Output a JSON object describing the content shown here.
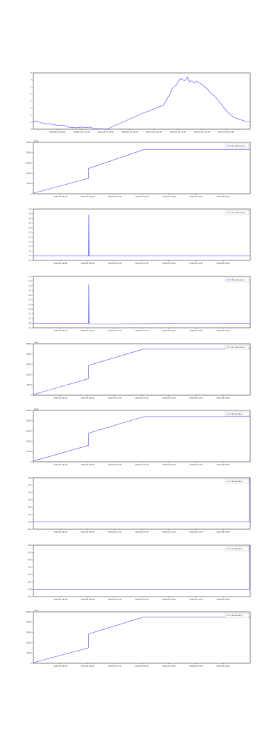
{
  "line_color": "#3b3bff",
  "chart_data": [
    {
      "type": "line",
      "legend": "",
      "offset_text": "",
      "ylim": [
        0,
        8
      ],
      "yticks": [
        "0",
        "1",
        "2",
        "3",
        "4",
        "5",
        "6",
        "7",
        "8"
      ],
      "xticks": [
        "2018-03-23 06:00",
        "2018-03-23 12:00",
        "2018-03-23 18:00",
        "2018-03-24 00:00",
        "2018-03-24 06:00",
        "2018-03-24 12:00",
        "2018-03-24 18:00",
        "2018-03-25 00:00"
      ],
      "x": [
        0,
        0.01,
        0.03,
        0.05,
        0.08,
        0.1,
        0.12,
        0.14,
        0.16,
        0.18,
        0.2,
        0.22,
        0.24,
        0.26,
        0.28,
        0.3,
        0.32,
        0.34,
        0.5,
        0.6,
        0.62,
        0.63,
        0.64,
        0.65,
        0.66,
        0.67,
        0.68,
        0.69,
        0.7,
        0.71,
        0.72,
        0.73,
        0.74,
        0.75,
        0.76,
        0.78,
        0.8,
        0.82,
        0.84,
        0.86,
        0.88,
        0.9,
        0.92,
        0.94,
        0.96,
        0.98,
        1.0
      ],
      "y": [
        1.0,
        1.2,
        0.95,
        0.8,
        0.75,
        0.6,
        0.5,
        0.55,
        0.3,
        0.25,
        0.2,
        0.3,
        0.25,
        0.3,
        0.1,
        0.05,
        0.05,
        0.0,
        2.2,
        3.4,
        4.5,
        5.0,
        5.8,
        6.0,
        6.3,
        6.9,
        7.2,
        7.0,
        6.9,
        7.4,
        6.7,
        6.9,
        6.6,
        6.8,
        6.7,
        6.3,
        5.8,
        5.1,
        4.6,
        3.8,
        3.0,
        2.3,
        1.8,
        1.5,
        1.3,
        1.1,
        1.0
      ]
    },
    {
      "type": "line",
      "legend": "X1 cyclecount_a",
      "offset_text": "1e6+",
      "ylim": [
        0,
        25000
      ],
      "yticks": [
        "0",
        "5000",
        "10000",
        "15000",
        "20000",
        "25000"
      ],
      "xticks": [
        "2018-04 06:00",
        "2018-04 09:00",
        "2018-04 12:00",
        "2018-04 15:00",
        "2018-04 18:00",
        "2018-04 21:00",
        "2018-05 00:00"
      ],
      "x": [
        0,
        0.255,
        0.255,
        0.51,
        0.995,
        1.0
      ],
      "y": [
        300,
        7500,
        12300,
        21500,
        21500,
        22000
      ]
    },
    {
      "type": "line",
      "legend": "X2 cyclecount_b",
      "offset_text": "",
      "ylim": [
        -0.1,
        1.0
      ],
      "yticks": [
        "-0.1",
        "0.0",
        "0.1",
        "0.2",
        "0.3",
        "0.4",
        "0.5",
        "0.6",
        "0.7",
        "0.8",
        "0.9",
        "1.0"
      ],
      "xticks": [
        "2018-04 06:00",
        "2018-04 09:00",
        "2018-04 12:00",
        "2018-04 15:00",
        "2018-04 18:00",
        "2018-04 21:00",
        "2018-05 00:00"
      ],
      "x": [
        0,
        0.255,
        0.256,
        0.257,
        0.51,
        1.0
      ],
      "y": [
        0.0,
        0.0,
        0.88,
        0.0,
        0.0,
        0.0
      ]
    },
    {
      "type": "line",
      "legend": "X3 cyclecount_c",
      "offset_text": "",
      "ylim": [
        -0.1,
        1.0
      ],
      "yticks": [
        "-0.1",
        "0.0",
        "0.1",
        "0.2",
        "0.3",
        "0.4",
        "0.5",
        "0.6",
        "0.7",
        "0.8",
        "0.9",
        "1.0"
      ],
      "xticks": [
        "2018-04 06:00",
        "2018-04 09:00",
        "2018-04 12:00",
        "2018-04 15:00",
        "2018-04 18:00",
        "2018-04 21:00",
        "2018-05 00:00"
      ],
      "x": [
        0,
        0.255,
        0.256,
        0.257,
        0.51,
        1.0
      ],
      "y": [
        0.0,
        0.0,
        0.83,
        -0.02,
        -0.01,
        0.0
      ]
    },
    {
      "type": "line",
      "legend": "X4 cyclecount_d",
      "offset_text": "1e6+",
      "ylim": [
        0,
        25000
      ],
      "yticks": [
        "0",
        "5000",
        "10000",
        "15000",
        "20000",
        "25000"
      ],
      "xticks": [
        "2018-04 06:00",
        "2018-04 09:00",
        "2018-04 12:00",
        "2018-04 15:00",
        "2018-04 18:00",
        "2018-04 21:00",
        "2018-05 00:00"
      ],
      "x": [
        0,
        0.255,
        0.255,
        0.51,
        0.995,
        1.0
      ],
      "y": [
        300,
        8000,
        14500,
        22500,
        22500,
        23000
      ]
    },
    {
      "type": "line",
      "legend": "X5 axiscalls_a",
      "offset_text": "1e6+",
      "ylim": [
        0,
        25000
      ],
      "yticks": [
        "0",
        "5000",
        "10000",
        "15000",
        "20000",
        "25000"
      ],
      "xticks": [
        "2018-04 06:00",
        "2018-04 09:00",
        "2018-04 12:00",
        "2018-04 15:00",
        "2018-04 18:00",
        "2018-04 21:00",
        "2018-05 00:00"
      ],
      "x": [
        0,
        0.255,
        0.255,
        0.51,
        0.995,
        1.0
      ],
      "y": [
        400,
        8000,
        14000,
        22000,
        22000,
        22500
      ]
    },
    {
      "type": "line",
      "legend": "X6 axiscalls_b",
      "offset_text": "",
      "ylim": [
        -0.01,
        0.06
      ],
      "yticks": [
        "-0.01",
        "0.00",
        "0.01",
        "0.02",
        "0.03",
        "0.04",
        "0.05",
        "0.06"
      ],
      "xticks": [
        "2018-04 06:00",
        "2018-04 09:00",
        "2018-04 12:00",
        "2018-04 15:00",
        "2018-04 18:00",
        "2018-04 21:00",
        "2018-05 00:00"
      ],
      "x": [
        0,
        0.997,
        0.997,
        1.0
      ],
      "y": [
        0.0,
        0.0,
        0.06,
        0.06
      ]
    },
    {
      "type": "line",
      "legend": "X7 axiscalls_c",
      "offset_text": "",
      "ylim": [
        -0.01,
        0.06
      ],
      "yticks": [
        "-0.01",
        "0.00",
        "0.01",
        "0.02",
        "0.03",
        "0.04",
        "0.05",
        "0.06"
      ],
      "xticks": [
        "2018-04 06:00",
        "2018-04 09:00",
        "2018-04 12:00",
        "2018-04 15:00",
        "2018-04 18:00",
        "2018-04 21:00",
        "2018-05 00:00"
      ],
      "x": [
        0,
        0.997,
        0.997,
        1.0
      ],
      "y": [
        0.0,
        0.0,
        0.06,
        0.06
      ]
    },
    {
      "type": "line",
      "legend": "X8 axiscalls_d",
      "offset_text": "1e6+",
      "ylim": [
        0,
        25000
      ],
      "yticks": [
        "0",
        "5000",
        "10000",
        "15000",
        "20000",
        "25000"
      ],
      "xticks": [
        "2018-04 06:00",
        "2018-04 09:00",
        "2018-04 12:00",
        "2018-04 15:00",
        "2018-04 18:00",
        "2018-04 21:00",
        "2018-05 00:00"
      ],
      "x": [
        0,
        0.255,
        0.255,
        0.51,
        0.995,
        1.0
      ],
      "y": [
        300,
        7500,
        14300,
        22500,
        22500,
        21500
      ]
    }
  ]
}
